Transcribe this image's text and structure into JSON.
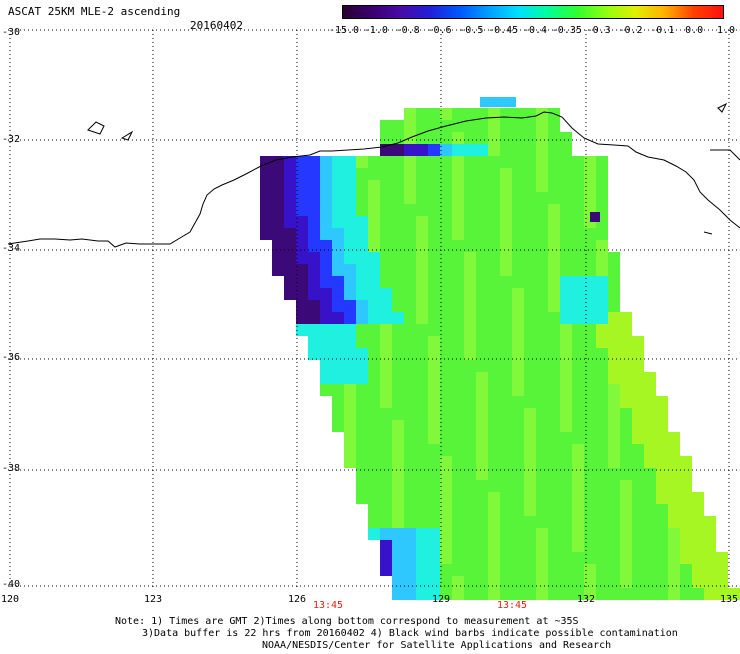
{
  "title": "ASCAT 25KM MLE-2 ascending",
  "date": "20160402",
  "colorbar": {
    "labels": [
      "-15.0",
      "-1.0",
      "-0.8",
      "-0.6",
      "-0.5",
      "-0.45",
      "-0.4",
      "-0.35",
      "-0.3",
      "-0.2",
      "-0.1",
      "0.0",
      "1.0"
    ],
    "colors": [
      "#2a0033",
      "#3b0070",
      "#4a0aa8",
      "#2020d8",
      "#0058ff",
      "#00a0ff",
      "#00e0ff",
      "#00ff9a",
      "#30ff30",
      "#90ff10",
      "#e0f000",
      "#ffb000",
      "#ff4000",
      "#ff1010"
    ]
  },
  "map": {
    "lat_labels": [
      "-30",
      "-32",
      "-34",
      "-36",
      "-38",
      "-40"
    ],
    "lon_labels": [
      "120",
      "123",
      "126",
      "129",
      "132",
      "135"
    ],
    "time_labels": [
      "13:45",
      "13:45"
    ],
    "swath_colors": {
      "base": "#58f43a",
      "light": "#82f83a",
      "yellowgreen": "#a6f623",
      "cyan": "#20f0e0",
      "lightblue": "#2ec8ff",
      "blue": "#2538ff",
      "darkblue": "#3812c8",
      "purple": "#3b0a78"
    }
  },
  "notes": {
    "line1": "Note: 1) Times are GMT 2)Times along bottom correspond to measurement at ~35S",
    "line2": "3)Data buffer is 22 hrs from 20160402 4) Black wind barbs indicate possible contamination",
    "line3": "NOAA/NESDIS/Center for Satellite Applications and Research"
  }
}
